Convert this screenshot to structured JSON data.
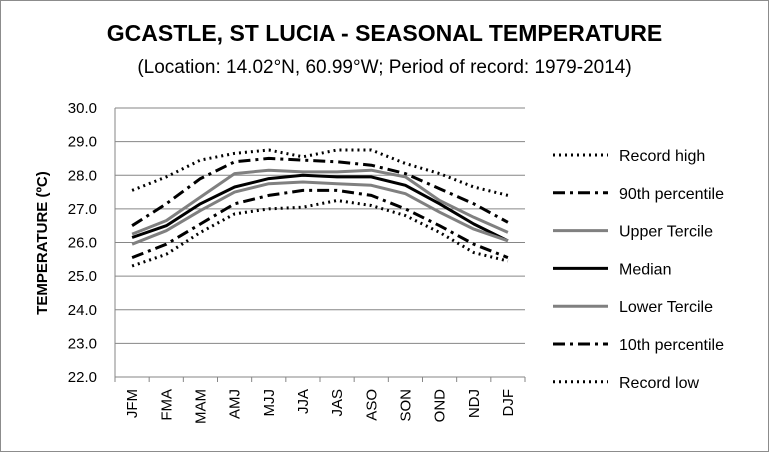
{
  "chart_data": {
    "type": "line",
    "title": "GCASTLE, ST LUCIA - SEASONAL TEMPERATURE",
    "subtitle": "(Location: 14.02°N, 60.99°W; Period of record: 1979-2014)",
    "xlabel": "",
    "ylabel": "TEMPERATURE (ºC)",
    "ylim": [
      22.0,
      30.0
    ],
    "yticks": [
      "30.0",
      "29.0",
      "28.0",
      "27.0",
      "26.0",
      "25.0",
      "24.0",
      "23.0",
      "22.0"
    ],
    "grid": true,
    "legend_position": "right",
    "categories": [
      "JFM",
      "FMA",
      "MAM",
      "AMJ",
      "MJJ",
      "JJA",
      "JAS",
      "ASO",
      "SON",
      "OND",
      "NDJ",
      "DJF"
    ],
    "series": [
      {
        "name": "Record high",
        "color": "#000000",
        "style": "dotted",
        "values": [
          27.55,
          27.95,
          28.45,
          28.65,
          28.75,
          28.55,
          28.75,
          28.75,
          28.35,
          28.05,
          27.65,
          27.4
        ]
      },
      {
        "name": "90th percentile",
        "color": "#000000",
        "style": "dashdot",
        "values": [
          26.5,
          27.15,
          27.9,
          28.4,
          28.5,
          28.45,
          28.4,
          28.3,
          28.05,
          27.6,
          27.15,
          26.6
        ]
      },
      {
        "name": "Upper Tercile",
        "color": "#808080",
        "style": "solid",
        "values": [
          26.25,
          26.65,
          27.35,
          28.05,
          28.15,
          28.1,
          28.1,
          28.15,
          27.95,
          27.25,
          26.75,
          26.3
        ]
      },
      {
        "name": "Median",
        "color": "#000000",
        "style": "solid",
        "values": [
          26.15,
          26.5,
          27.15,
          27.65,
          27.9,
          28.0,
          27.95,
          27.95,
          27.7,
          27.15,
          26.55,
          26.05
        ]
      },
      {
        "name": "Lower Tercile",
        "color": "#808080",
        "style": "solid",
        "values": [
          25.95,
          26.35,
          26.95,
          27.5,
          27.75,
          27.8,
          27.75,
          27.7,
          27.45,
          26.9,
          26.4,
          26.05
        ]
      },
      {
        "name": "10th percentile",
        "color": "#000000",
        "style": "dashdot",
        "values": [
          25.55,
          25.95,
          26.55,
          27.15,
          27.4,
          27.55,
          27.55,
          27.4,
          27.0,
          26.5,
          25.95,
          25.55
        ]
      },
      {
        "name": "Record low",
        "color": "#000000",
        "style": "dotted",
        "values": [
          25.3,
          25.65,
          26.3,
          26.85,
          27.0,
          27.05,
          27.25,
          27.1,
          26.8,
          26.3,
          25.7,
          25.45
        ]
      }
    ]
  }
}
